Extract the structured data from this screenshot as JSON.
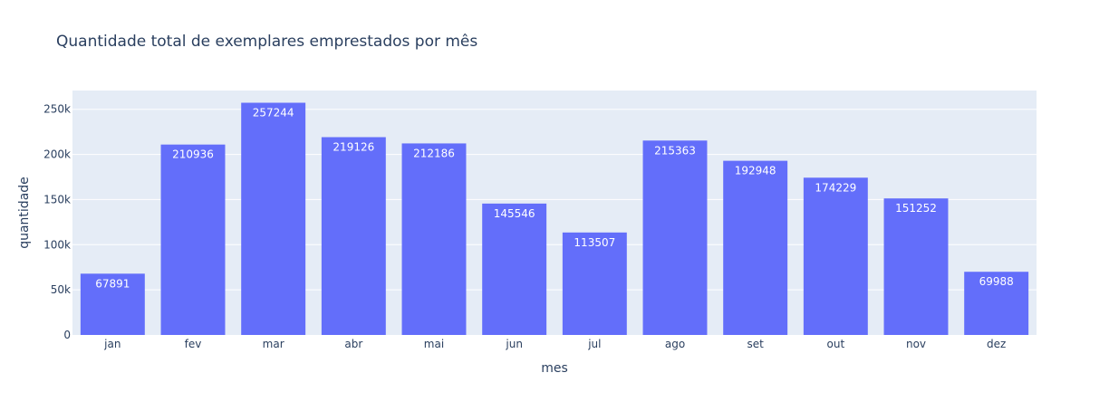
{
  "chart_data": {
    "type": "bar",
    "title": "Quantidade total de exemplares emprestados por mês",
    "xlabel": "mes",
    "ylabel": "quantidade",
    "categories": [
      "jan",
      "fev",
      "mar",
      "abr",
      "mai",
      "jun",
      "jul",
      "ago",
      "set",
      "out",
      "nov",
      "dez"
    ],
    "values": [
      67891,
      210936,
      257244,
      219126,
      212186,
      145546,
      113507,
      215363,
      192948,
      174229,
      151252,
      69988
    ],
    "data_labels": [
      "67891",
      "210936",
      "257244",
      "219126",
      "212186",
      "145546",
      "113507",
      "215363",
      "192948",
      "174229",
      "151252",
      "69988"
    ],
    "ylim": [
      0,
      270783
    ],
    "y_ticks": [
      0,
      50000,
      100000,
      150000,
      200000,
      250000
    ],
    "y_tick_labels": [
      "0",
      "50k",
      "100k",
      "150k",
      "200k",
      "250k"
    ],
    "grid": true,
    "legend": "none",
    "colors": {
      "bar": "#636efa",
      "plot_background": "#e5ecf6",
      "grid": "#ffffff",
      "text": "#2a3f5f",
      "bar_label": "#ffffff"
    }
  }
}
